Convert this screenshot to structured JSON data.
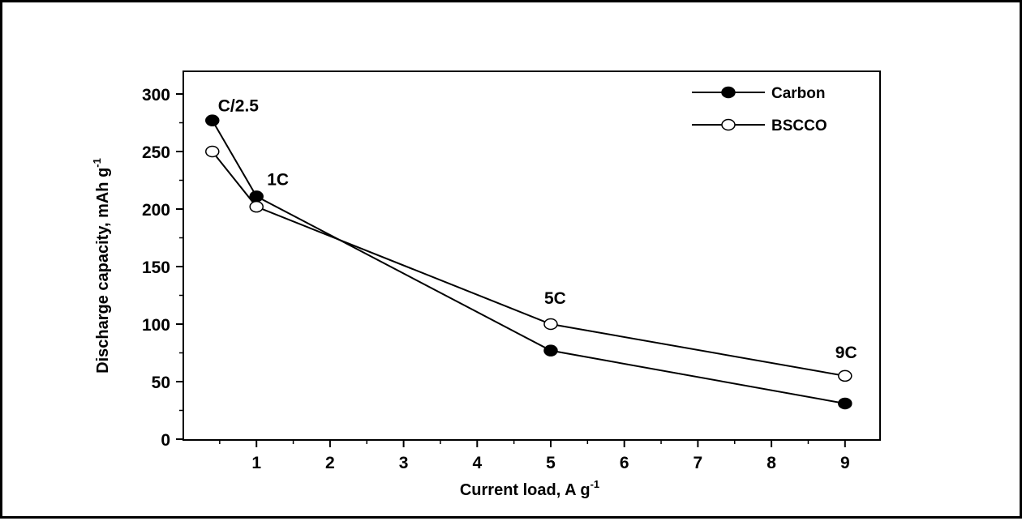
{
  "chart_data": {
    "type": "line",
    "xlabel": "Current load, A g",
    "xlabel_sup": "-1",
    "ylabel": "Discharge capacity, mAh g",
    "ylabel_sup": "-1",
    "xlim": [
      0,
      10
    ],
    "ylim": [
      0,
      300
    ],
    "x_ticks": [
      1,
      2,
      3,
      4,
      5,
      6,
      7,
      8,
      9
    ],
    "x_tick_labels": [
      "1",
      "2",
      "3",
      "4",
      "5",
      "6",
      "7",
      "8",
      "9"
    ],
    "y_ticks": [
      0,
      50,
      100,
      150,
      200,
      250,
      300
    ],
    "y_tick_labels": [
      "0",
      "50",
      "100",
      "150",
      "200",
      "250",
      "300"
    ],
    "grid": false,
    "legend_position": "top-right",
    "series": [
      {
        "name": "Carbon",
        "marker": "filled-circle",
        "color": "#000000",
        "x": [
          0.4,
          1,
          5,
          9
        ],
        "y": [
          277,
          211,
          77,
          31
        ]
      },
      {
        "name": "BSCCO",
        "marker": "open-circle",
        "color": "#000000",
        "x": [
          0.4,
          1,
          5,
          9
        ],
        "y": [
          250,
          202,
          100,
          55
        ]
      }
    ],
    "annotations": [
      {
        "text": "C/2.5",
        "x": 0.4,
        "y": 277
      },
      {
        "text": "1C",
        "x": 1,
        "y": 211
      },
      {
        "text": "5C",
        "x": 5,
        "y": 100
      },
      {
        "text": "9C",
        "x": 9,
        "y": 55
      }
    ]
  }
}
